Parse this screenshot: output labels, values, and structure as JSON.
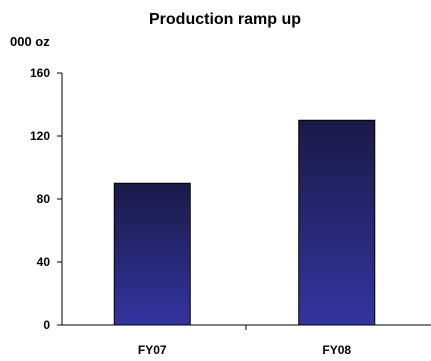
{
  "chart_data": {
    "type": "bar",
    "title": "Production ramp up",
    "ylabel": "000 oz",
    "xlabel": "",
    "categories": [
      "FY07",
      "FY08"
    ],
    "values": [
      90,
      130
    ],
    "ylim": [
      0,
      160
    ],
    "yticks": [
      0,
      40,
      80,
      120,
      160
    ],
    "grid": false,
    "legend": "none",
    "bar_color_top": "#1a1a48",
    "bar_color_bottom": "#3434a0"
  }
}
